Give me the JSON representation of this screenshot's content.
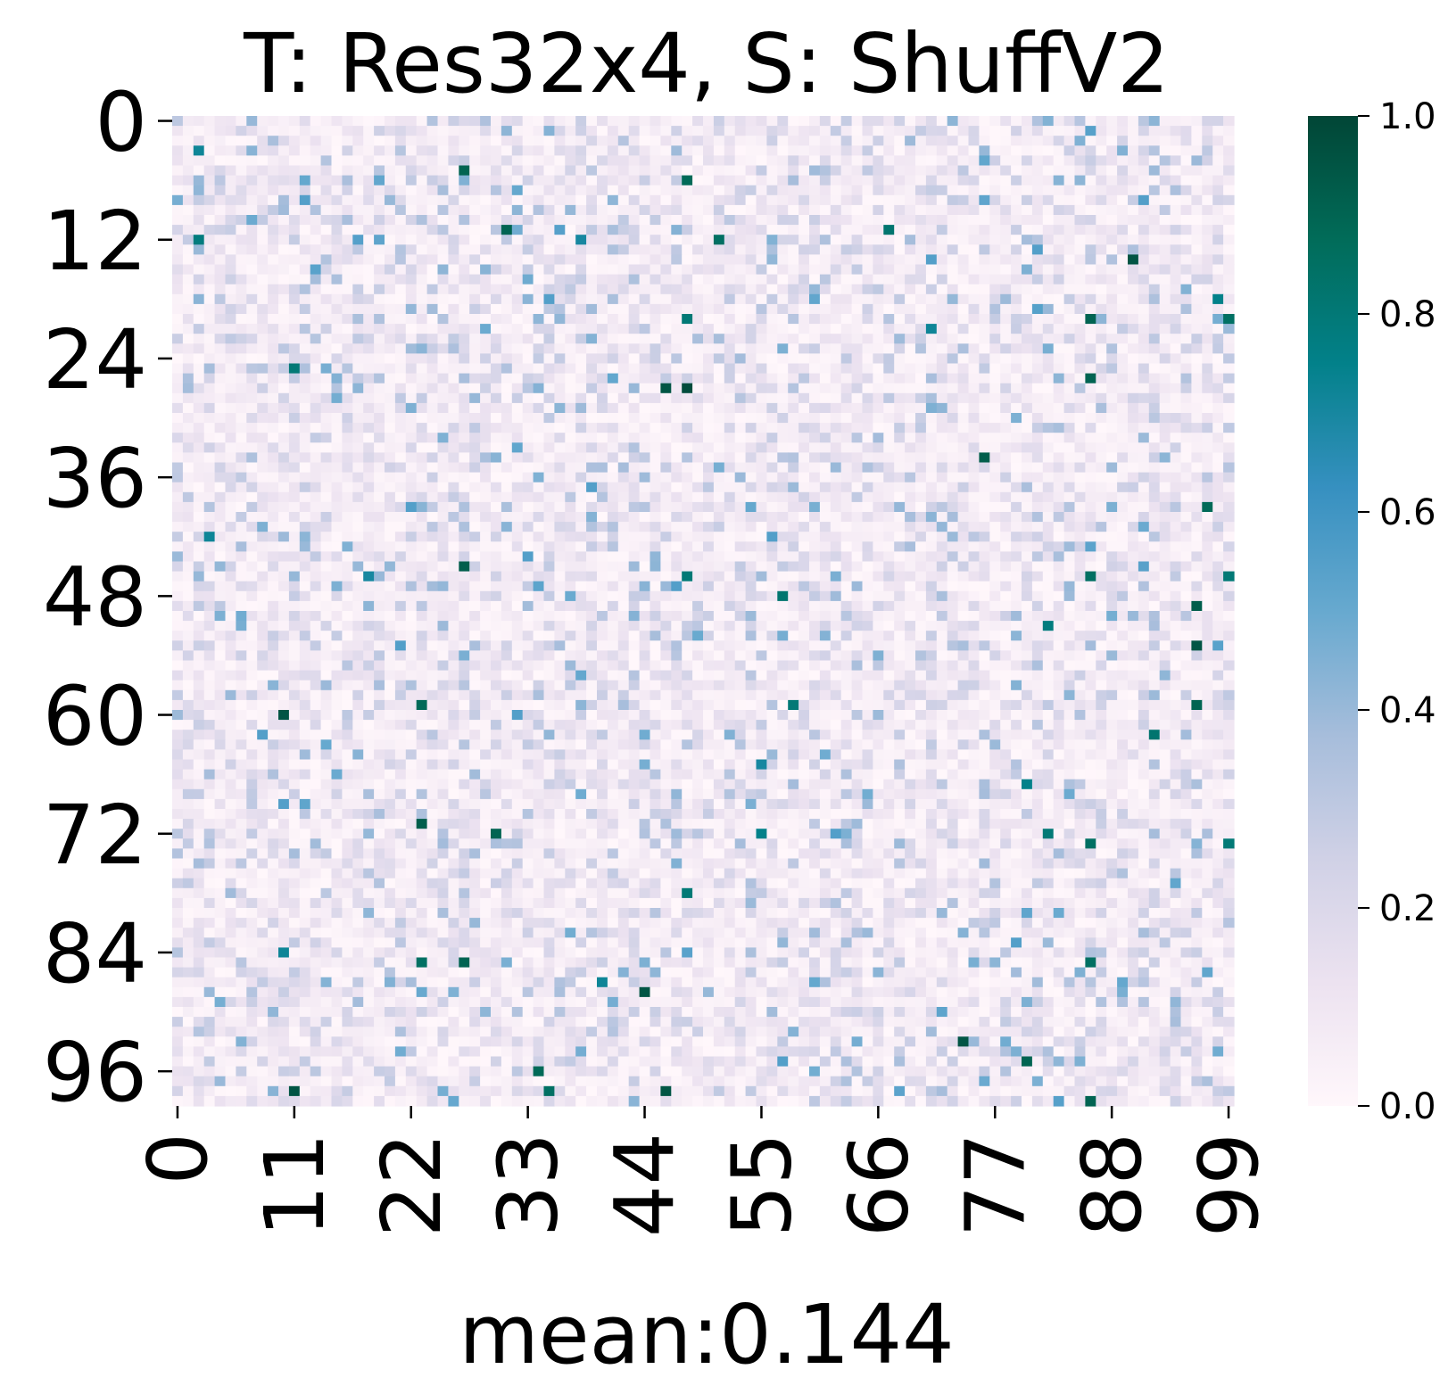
{
  "chart_data": {
    "type": "heatmap",
    "title": "T: Res32x4, S: ShuffV2",
    "xlabel": "mean:0.144",
    "ylabel": "",
    "rows": 100,
    "cols": 100,
    "x_ticks": [
      0,
      11,
      22,
      33,
      44,
      55,
      66,
      77,
      88,
      99
    ],
    "y_ticks": [
      0,
      12,
      24,
      36,
      48,
      60,
      72,
      84,
      96
    ],
    "colorbar": {
      "min": 0.0,
      "max": 1.0,
      "ticks": [
        "0.0",
        "0.2",
        "0.4",
        "0.6",
        "0.8",
        "1.0"
      ],
      "colormap": "PuBuGn",
      "stops": [
        "#fff7fb",
        "#ece2f0",
        "#d0d1e6",
        "#a6bddb",
        "#67a9cf",
        "#3690c0",
        "#02818a",
        "#016c59",
        "#014636"
      ]
    },
    "mean": 0.144,
    "hot_cells": [
      [
        3,
        2,
        0.72
      ],
      [
        5,
        27,
        0.9
      ],
      [
        6,
        48,
        0.88
      ],
      [
        11,
        31,
        0.9
      ],
      [
        12,
        2,
        0.78
      ],
      [
        12,
        38,
        0.7
      ],
      [
        12,
        51,
        0.85
      ],
      [
        11,
        67,
        0.82
      ],
      [
        14,
        90,
        0.95
      ],
      [
        18,
        98,
        0.75
      ],
      [
        20,
        48,
        0.8
      ],
      [
        20,
        86,
        0.9
      ],
      [
        20,
        99,
        0.85
      ],
      [
        21,
        71,
        0.72
      ],
      [
        25,
        11,
        0.8
      ],
      [
        27,
        46,
        0.95
      ],
      [
        27,
        48,
        0.98
      ],
      [
        26,
        86,
        0.9
      ],
      [
        34,
        76,
        0.92
      ],
      [
        39,
        97,
        0.88
      ],
      [
        42,
        3,
        0.72
      ],
      [
        45,
        27,
        0.92
      ],
      [
        46,
        18,
        0.7
      ],
      [
        46,
        48,
        0.8
      ],
      [
        46,
        86,
        0.85
      ],
      [
        46,
        99,
        0.8
      ],
      [
        48,
        57,
        0.82
      ],
      [
        49,
        96,
        0.92
      ],
      [
        51,
        82,
        0.78
      ],
      [
        53,
        96,
        0.95
      ],
      [
        59,
        23,
        0.88
      ],
      [
        59,
        58,
        0.8
      ],
      [
        59,
        96,
        0.9
      ],
      [
        60,
        10,
        0.95
      ],
      [
        62,
        92,
        0.82
      ],
      [
        65,
        55,
        0.7
      ],
      [
        67,
        80,
        0.75
      ],
      [
        71,
        23,
        0.92
      ],
      [
        72,
        82,
        0.8
      ],
      [
        72,
        30,
        0.9
      ],
      [
        72,
        55,
        0.75
      ],
      [
        73,
        86,
        0.85
      ],
      [
        73,
        99,
        0.8
      ],
      [
        78,
        48,
        0.8
      ],
      [
        84,
        10,
        0.72
      ],
      [
        85,
        23,
        0.85
      ],
      [
        85,
        27,
        0.9
      ],
      [
        85,
        86,
        0.85
      ],
      [
        87,
        40,
        0.72
      ],
      [
        88,
        44,
        0.95
      ],
      [
        93,
        74,
        0.95
      ],
      [
        95,
        80,
        0.9
      ],
      [
        96,
        34,
        0.88
      ],
      [
        98,
        11,
        0.95
      ],
      [
        98,
        35,
        0.85
      ],
      [
        98,
        46,
        0.95
      ],
      [
        99,
        86,
        0.9
      ]
    ]
  }
}
